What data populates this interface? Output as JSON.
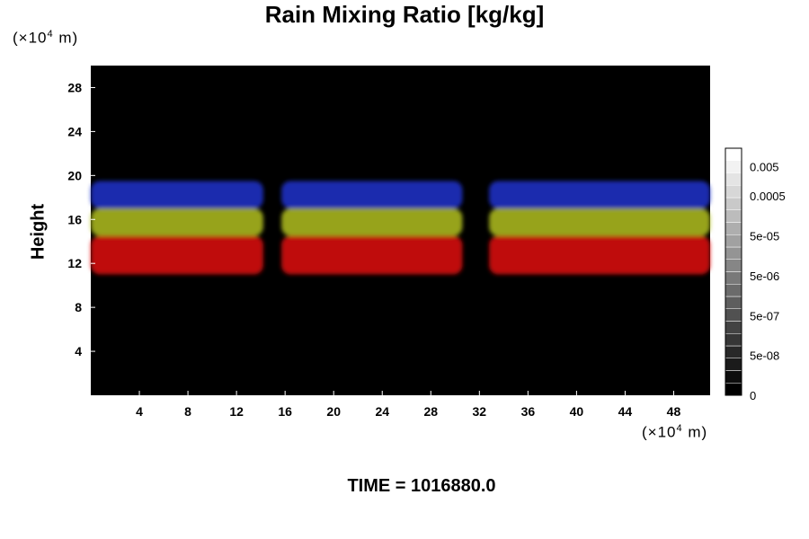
{
  "chart_data": {
    "type": "heatmap",
    "title": "Rain Mixing Ratio [kg/kg]",
    "xlabel": "",
    "ylabel": "Height",
    "x_unit": [
      "(×10",
      "4",
      " m)"
    ],
    "y_unit": [
      "(×10",
      "4",
      " m)"
    ],
    "xlim": [
      0,
      51
    ],
    "ylim": [
      0,
      30
    ],
    "x_ticks": [
      4,
      8,
      12,
      16,
      20,
      24,
      28,
      32,
      36,
      40,
      44,
      48
    ],
    "y_ticks": [
      4,
      8,
      12,
      16,
      20,
      24,
      28
    ],
    "colorbar": {
      "levels": 20,
      "labels": [
        "0",
        "5e-08",
        "5e-07",
        "5e-06",
        "5e-05",
        "0.0005",
        "0.005"
      ],
      "colors": {
        "low": "#000000",
        "high": "#ffffff"
      }
    },
    "layers": [
      {
        "band": "top",
        "color": "#2233cc",
        "y_range": [
          17,
          19.5
        ]
      },
      {
        "band": "middle",
        "color": "#b2c01e",
        "y_range": [
          14.5,
          17
        ]
      },
      {
        "band": "bottom",
        "color": "#e01010",
        "y_range": [
          11,
          14.5
        ]
      }
    ],
    "background_color": "#000000"
  },
  "footer": {
    "time": "TIME = 1016880.0"
  }
}
